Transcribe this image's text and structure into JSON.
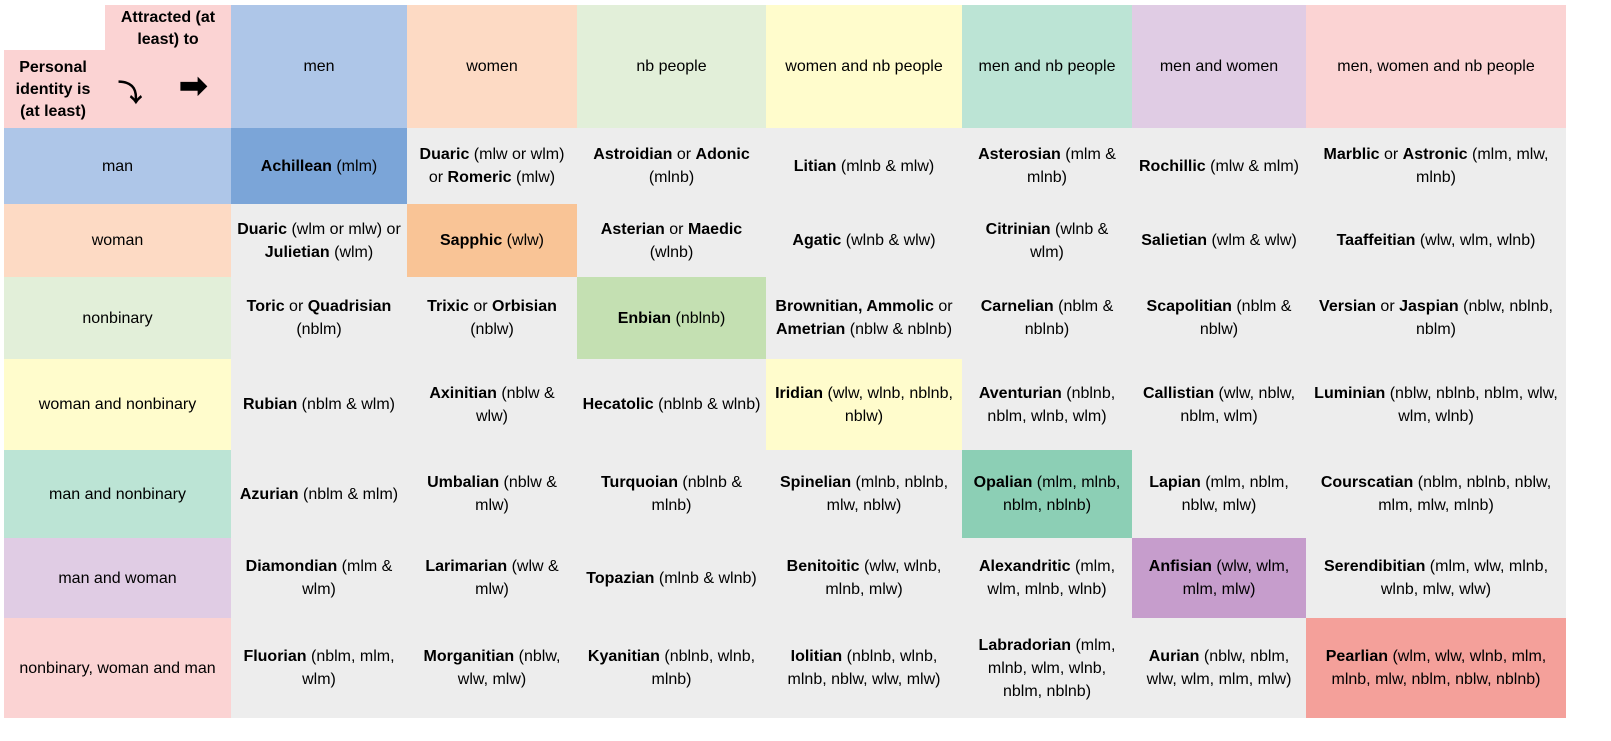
{
  "corner": {
    "attracted": "Attracted (at least) to",
    "personal": "Personal identity is (at least)",
    "down_icon": "curved-down-arrow",
    "right_icon": "right-arrow"
  },
  "columns": [
    {
      "label": "men",
      "color": "#aec6e8"
    },
    {
      "label": "women",
      "color": "#fddac4"
    },
    {
      "label": "nb people",
      "color": "#e2efd9"
    },
    {
      "label": "women and nb people",
      "color": "#fffccc"
    },
    {
      "label": "men and nb people",
      "color": "#bce4d5"
    },
    {
      "label": "men and women",
      "color": "#e0cce4"
    },
    {
      "label": "men, women and nb people",
      "color": "#fbd3d3"
    }
  ],
  "rows": [
    {
      "label": "man",
      "color": "#aec6e8",
      "diag": "#7ba5d8",
      "cells": [
        [
          [
            "Achillean",
            1
          ],
          [
            " (mlm)",
            0
          ]
        ],
        [
          [
            "Duaric",
            1
          ],
          [
            " (mlw or wlm) or ",
            0
          ],
          [
            "Romeric",
            1
          ],
          [
            " (mlw)",
            0
          ]
        ],
        [
          [
            "Astroidian",
            1
          ],
          [
            " or ",
            0
          ],
          [
            "Adonic",
            1
          ],
          [
            " (mlnb)",
            0
          ]
        ],
        [
          [
            "Litian",
            1
          ],
          [
            " (mlnb & mlw)",
            0
          ]
        ],
        [
          [
            "Asterosian",
            1
          ],
          [
            " (mlm & mlnb)",
            0
          ]
        ],
        [
          [
            "Rochillic",
            1
          ],
          [
            " (mlw & mlm)",
            0
          ]
        ],
        [
          [
            "Marblic",
            1
          ],
          [
            " or ",
            0
          ],
          [
            "Astronic",
            1
          ],
          [
            " (mlm, mlw, mlnb)",
            0
          ]
        ]
      ]
    },
    {
      "label": "woman",
      "color": "#fddac4",
      "diag": "#f9c496",
      "cells": [
        [
          [
            "Duaric",
            1
          ],
          [
            " (wlm or mlw) or ",
            0
          ],
          [
            "Julietian",
            1
          ],
          [
            " (wlm)",
            0
          ]
        ],
        [
          [
            "Sapphic",
            1
          ],
          [
            " (wlw)",
            0
          ]
        ],
        [
          [
            "Asterian",
            1
          ],
          [
            " or ",
            0
          ],
          [
            "Maedic",
            1
          ],
          [
            " (wlnb)",
            0
          ]
        ],
        [
          [
            "Agatic",
            1
          ],
          [
            " (wlnb & wlw)",
            0
          ]
        ],
        [
          [
            "Citrinian",
            1
          ],
          [
            " (wlnb & wlm)",
            0
          ]
        ],
        [
          [
            "Salietian",
            1
          ],
          [
            " (wlm & wlw)",
            0
          ]
        ],
        [
          [
            "Taaffeitian",
            1
          ],
          [
            " (wlw, wlm, wlnb)",
            0
          ]
        ]
      ]
    },
    {
      "label": "nonbinary",
      "color": "#e2efd9",
      "diag": "#c4e0b2",
      "cells": [
        [
          [
            "Toric",
            1
          ],
          [
            " or ",
            0
          ],
          [
            "Quadrisian",
            1
          ],
          [
            " (nblm)",
            0
          ]
        ],
        [
          [
            "Trixic",
            1
          ],
          [
            " or ",
            0
          ],
          [
            "Orbisian",
            1
          ],
          [
            " (nblw)",
            0
          ]
        ],
        [
          [
            "Enbian",
            1
          ],
          [
            " (nblnb)",
            0
          ]
        ],
        [
          [
            "Brownitian, Ammolic",
            1
          ],
          [
            " or ",
            0
          ],
          [
            "Ametrian",
            1
          ],
          [
            " (nblw & nblnb)",
            0
          ]
        ],
        [
          [
            "Carnelian",
            1
          ],
          [
            " (nblm & nblnb)",
            0
          ]
        ],
        [
          [
            "Scapolitian",
            1
          ],
          [
            " (nblm & nblw)",
            0
          ]
        ],
        [
          [
            "Versian",
            1
          ],
          [
            " or ",
            0
          ],
          [
            "Jaspian",
            1
          ],
          [
            " (nblw, nblnb, nblm)",
            0
          ]
        ]
      ]
    },
    {
      "label": "woman and nonbinary",
      "color": "#fffccc",
      "diag": "#fffccc",
      "cells": [
        [
          [
            "Rubian",
            1
          ],
          [
            " (nblm & wlm)",
            0
          ]
        ],
        [
          [
            "Axinitian",
            1
          ],
          [
            " (nblw & wlw)",
            0
          ]
        ],
        [
          [
            "Hecatolic",
            1
          ],
          [
            " (nblnb & wlnb)",
            0
          ]
        ],
        [
          [
            "Iridian",
            1
          ],
          [
            " (wlw, wlnb, nblnb, nblw)",
            0
          ]
        ],
        [
          [
            "Aventurian",
            1
          ],
          [
            " (nblnb, nblm, wlnb, wlm)",
            0
          ]
        ],
        [
          [
            "Callistian",
            1
          ],
          [
            " (wlw, nblw, nblm, wlm)",
            0
          ]
        ],
        [
          [
            "Luminian",
            1
          ],
          [
            " (nblw, nblnb, nblm, wlw, wlm, wlnb)",
            0
          ]
        ]
      ]
    },
    {
      "label": "man and nonbinary",
      "color": "#bce4d5",
      "diag": "#8ccfb5",
      "cells": [
        [
          [
            "Azurian",
            1
          ],
          [
            " (nblm & mlm)",
            0
          ]
        ],
        [
          [
            "Umbalian",
            1
          ],
          [
            " (nblw & mlw)",
            0
          ]
        ],
        [
          [
            "Turquoian",
            1
          ],
          [
            " (nblnb & mlnb)",
            0
          ]
        ],
        [
          [
            "Spinelian",
            1
          ],
          [
            " (mlnb, nblnb, mlw, nblw)",
            0
          ]
        ],
        [
          [
            "Opalian",
            1
          ],
          [
            " (mlm, mlnb, nblm, nblnb)",
            0
          ]
        ],
        [
          [
            "Lapian",
            1
          ],
          [
            " (mlm, nblm, nblw, mlw)",
            0
          ]
        ],
        [
          [
            "Courscatian",
            1
          ],
          [
            " (nblm, nblnb, nblw, mlm, mlw, mlnb)",
            0
          ]
        ]
      ]
    },
    {
      "label": "man and woman",
      "color": "#e0cce4",
      "diag": "#c69dcc",
      "cells": [
        [
          [
            "Diamondian",
            1
          ],
          [
            " (mlm & wlm)",
            0
          ]
        ],
        [
          [
            "Larimarian",
            1
          ],
          [
            " (wlw & mlw)",
            0
          ]
        ],
        [
          [
            "Topazian",
            1
          ],
          [
            " (mlnb & wlnb)",
            0
          ]
        ],
        [
          [
            "Benitoitic",
            1
          ],
          [
            " (wlw, wlnb, mlnb, mlw)",
            0
          ]
        ],
        [
          [
            "Alexandritic",
            1
          ],
          [
            " (mlm, wlm, mlnb, wlnb)",
            0
          ]
        ],
        [
          [
            "Anfisian",
            1
          ],
          [
            " (wlw, wlm, mlm, mlw)",
            0
          ]
        ],
        [
          [
            "Serendibitian",
            1
          ],
          [
            " (mlm, wlw, mlnb, wlnb, mlw, wlw)",
            0
          ]
        ]
      ]
    },
    {
      "label": "nonbinary, woman and man",
      "color": "#fbd3d3",
      "diag": "#f4a09a",
      "cells": [
        [
          [
            "Fluorian",
            1
          ],
          [
            " (nblm, mlm, wlm)",
            0
          ]
        ],
        [
          [
            "Morganitian",
            1
          ],
          [
            " (nblw, wlw, mlw)",
            0
          ]
        ],
        [
          [
            "Kyanitian",
            1
          ],
          [
            " (nblnb, wlnb, mlnb)",
            0
          ]
        ],
        [
          [
            "Iolitian",
            1
          ],
          [
            " (nblnb, wlnb, mlnb, nblw, wlw, mlw)",
            0
          ]
        ],
        [
          [
            "Labradorian",
            1
          ],
          [
            " (mlm, mlnb, wlm, wlnb, nblm, nblnb)",
            0
          ]
        ],
        [
          [
            "Aurian",
            1
          ],
          [
            " (nblw, nblm, wlw, wlm, mlm, mlw)",
            0
          ]
        ],
        [
          [
            "Pearlian",
            1
          ],
          [
            " (wlm, wlw, wlnb, mlm, mlnb, mlw, nblm, nblw, nblnb)",
            0
          ]
        ]
      ]
    }
  ]
}
